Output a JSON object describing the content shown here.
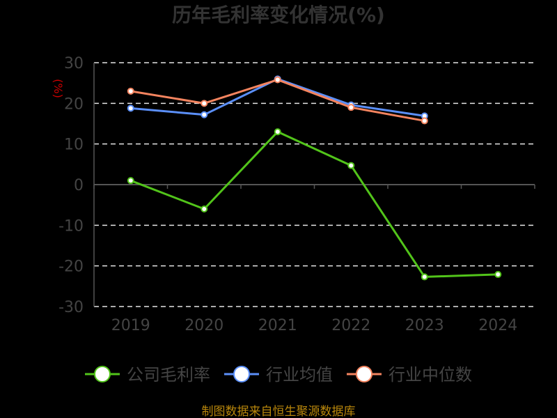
{
  "chart_data": {
    "type": "line",
    "title": "历年毛利率变化情况(%)",
    "ylabel": "(%)",
    "xlabel": "",
    "categories": [
      "2019",
      "2020",
      "2021",
      "2022",
      "2023",
      "2024"
    ],
    "ylim": [
      -30,
      30
    ],
    "yticks": [
      30,
      20,
      10,
      0,
      -10,
      -20,
      -30
    ],
    "grid": true,
    "legend_position": "bottom",
    "series": [
      {
        "name": "公司毛利率",
        "color": "#52c41a",
        "values": [
          1.0,
          -6.0,
          13.0,
          4.7,
          -22.7,
          -22.1
        ]
      },
      {
        "name": "行业均值",
        "color": "#5b8ff9",
        "values": [
          18.8,
          17.2,
          26.0,
          19.6,
          16.9,
          null
        ]
      },
      {
        "name": "行业中位数",
        "color": "#f4845f",
        "values": [
          23.0,
          20.0,
          25.8,
          19.0,
          15.7,
          null
        ]
      }
    ],
    "source": "制图数据来自恒生聚源数据库"
  }
}
